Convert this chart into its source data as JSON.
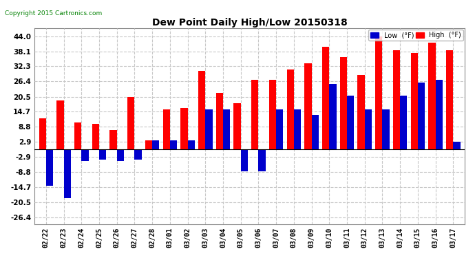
{
  "title": "Dew Point Daily High/Low 20150318",
  "copyright": "Copyright 2015 Cartronics.com",
  "dates": [
    "02/22",
    "02/23",
    "02/24",
    "02/25",
    "02/26",
    "02/27",
    "02/28",
    "03/01",
    "03/02",
    "03/03",
    "03/04",
    "03/05",
    "03/06",
    "03/07",
    "03/08",
    "03/09",
    "03/10",
    "03/11",
    "03/12",
    "03/13",
    "03/14",
    "03/15",
    "03/16",
    "03/17"
  ],
  "high": [
    12.0,
    19.0,
    10.5,
    10.0,
    7.5,
    20.5,
    3.5,
    15.5,
    16.0,
    30.5,
    22.0,
    18.0,
    27.0,
    27.0,
    31.0,
    33.5,
    40.0,
    36.0,
    29.0,
    44.0,
    38.5,
    37.5,
    41.5,
    38.5
  ],
  "low": [
    -14.0,
    -19.0,
    -4.5,
    -4.0,
    -4.5,
    -4.0,
    3.5,
    3.5,
    3.5,
    15.5,
    15.5,
    -8.5,
    -8.5,
    15.5,
    15.5,
    13.5,
    25.5,
    21.0,
    15.5,
    15.5,
    21.0,
    26.0,
    27.0,
    2.9
  ],
  "high_color": "#ff0000",
  "low_color": "#0000cc",
  "bg_color": "#ffffff",
  "grid_color": "#c8c8c8",
  "yticks": [
    -26.4,
    -20.5,
    -14.7,
    -8.8,
    -2.9,
    2.9,
    8.8,
    14.7,
    20.5,
    26.4,
    32.3,
    38.1,
    44.0
  ],
  "ylim": [
    -29,
    47
  ],
  "bar_width": 0.4,
  "figwidth": 6.9,
  "figheight": 3.75,
  "dpi": 100
}
